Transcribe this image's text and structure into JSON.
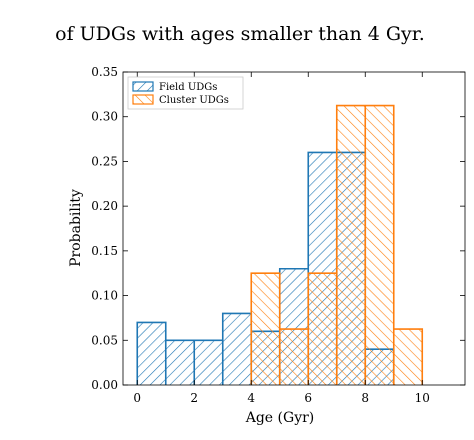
{
  "text": "of UDGs with ages smaller than 4 Gyr.",
  "chart_data": {
    "type": "histogram",
    "xlabel": "Age (Gyr)",
    "ylabel": "Probability",
    "bins": [
      0,
      1,
      2,
      3,
      4,
      5,
      6,
      7,
      8,
      9,
      10
    ],
    "series": [
      {
        "name": "Field UDGs",
        "color": "#1f77b4",
        "hatch": "/",
        "values": [
          0.07,
          0.05,
          0.05,
          0.08,
          0.06,
          0.13,
          0.26,
          0.26,
          0.04,
          0
        ]
      },
      {
        "name": "Cluster UDGs",
        "color": "#ff7f0e",
        "hatch": "\\",
        "values": [
          0,
          0,
          0,
          0,
          0.125,
          0.0625,
          0.125,
          0.3125,
          0.3125,
          0.0625
        ]
      }
    ],
    "xlim": [
      -0.5,
      11.5
    ],
    "ylim": [
      0,
      0.35
    ],
    "xticks": [
      0,
      2,
      4,
      6,
      8,
      10
    ],
    "yticks": [
      {
        "value": 0,
        "label": "0.00"
      },
      {
        "value": 0.05,
        "label": "0.05"
      },
      {
        "value": 0.1,
        "label": "0.10"
      },
      {
        "value": 0.15,
        "label": "0.15"
      },
      {
        "value": 0.2,
        "label": "0.20"
      },
      {
        "value": 0.25,
        "label": "0.25"
      },
      {
        "value": 0.3,
        "label": "0.30"
      },
      {
        "value": 0.35,
        "label": "0.35"
      }
    ],
    "legend": "upper left"
  }
}
